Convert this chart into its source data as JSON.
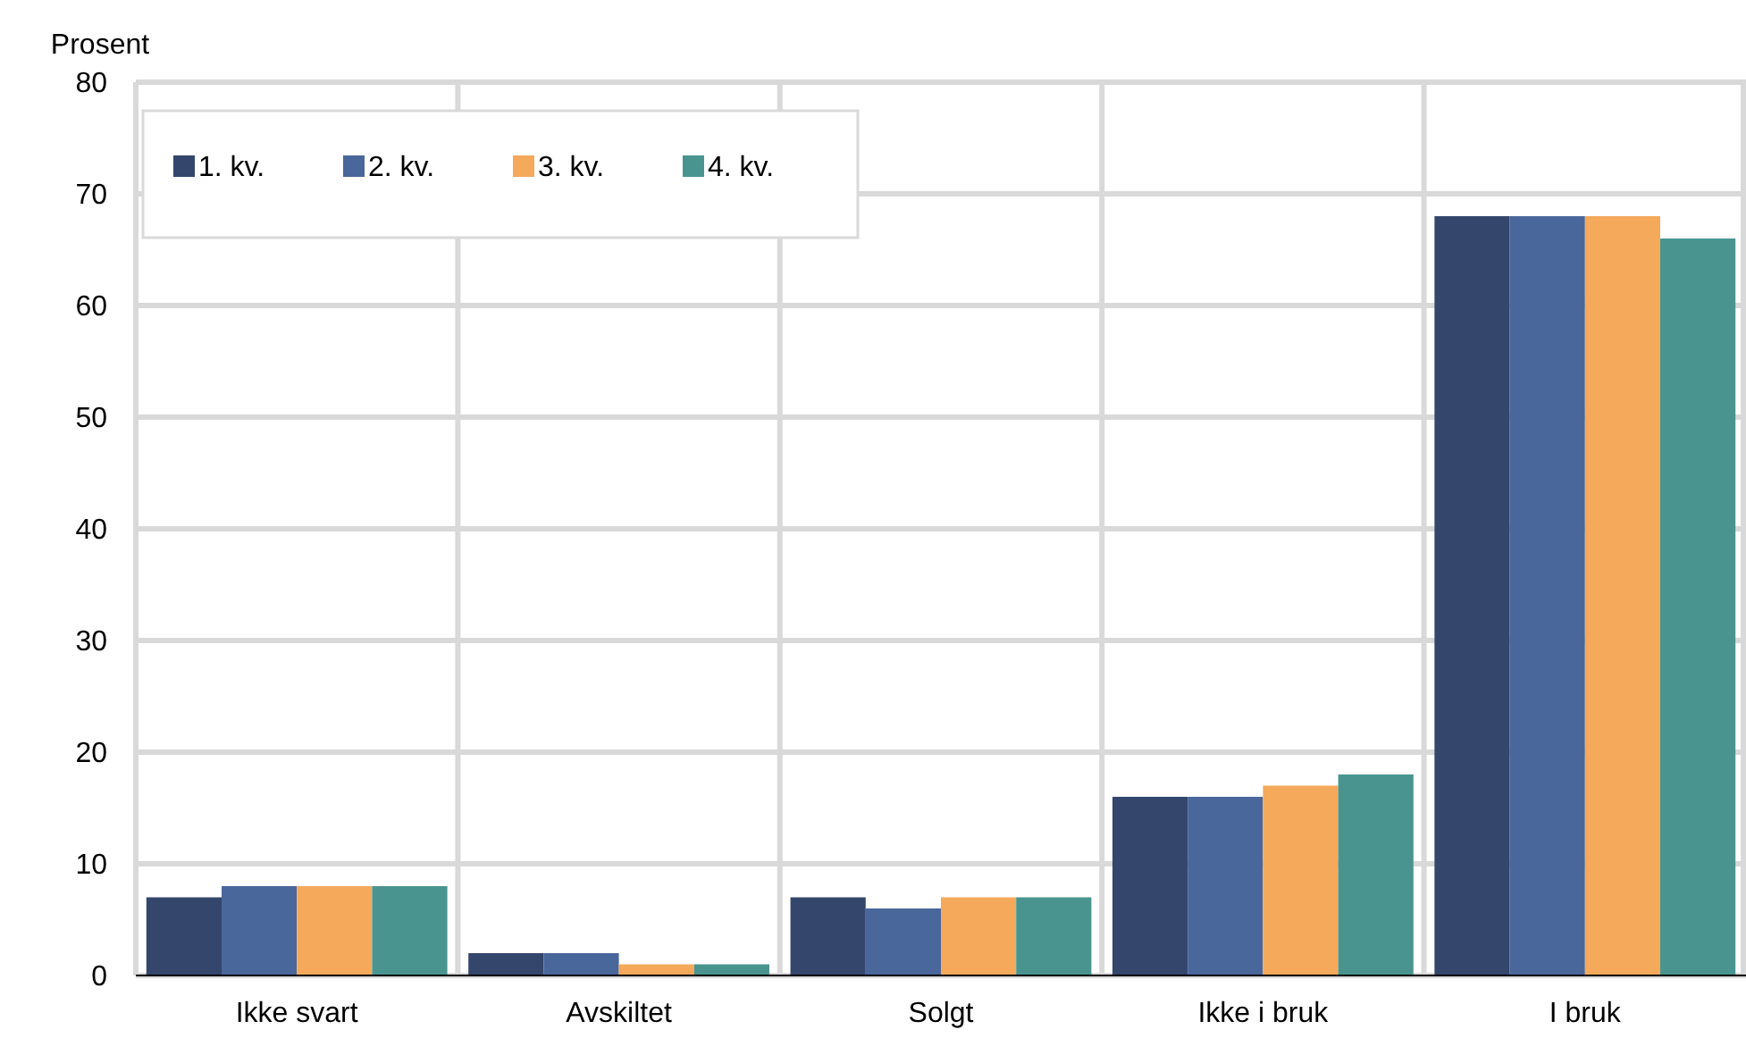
{
  "chart_data": {
    "type": "bar",
    "ylabel": "Prosent",
    "categories": [
      "Ikke svart",
      "Avskiltet",
      "Solgt",
      "Ikke i bruk",
      "I bruk"
    ],
    "series": [
      {
        "name": "1. kv.",
        "color": "#34466b",
        "values": [
          7,
          2,
          7,
          16,
          68
        ]
      },
      {
        "name": "2. kv.",
        "color": "#4a679b",
        "values": [
          8,
          2,
          6,
          16,
          68
        ]
      },
      {
        "name": "3. kv.",
        "color": "#f5a95b",
        "values": [
          8,
          1,
          7,
          17,
          68
        ]
      },
      {
        "name": "4. kv.",
        "color": "#4a9490",
        "values": [
          8,
          1,
          7,
          18,
          66
        ]
      }
    ],
    "ylim": [
      0,
      80
    ],
    "yticks": [
      0,
      10,
      20,
      30,
      40,
      50,
      60,
      70,
      80
    ],
    "grid": true,
    "legend": "top left"
  }
}
